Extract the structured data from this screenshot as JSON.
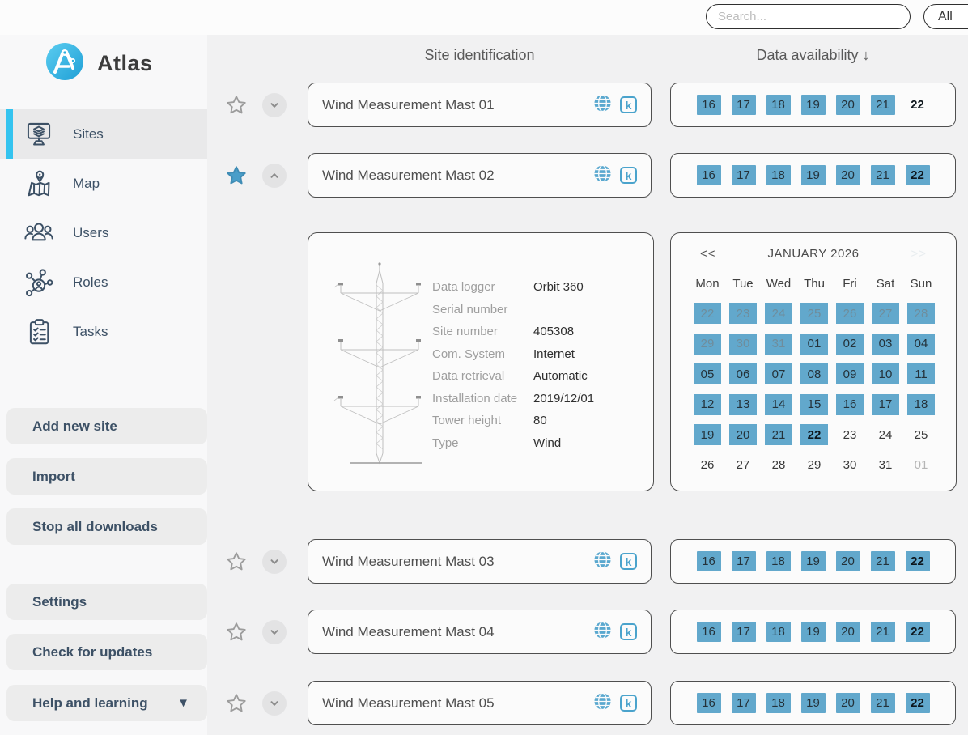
{
  "topbar": {
    "search": {
      "placeholder": "Search..."
    },
    "filter": {
      "value": "All"
    }
  },
  "brand": {
    "name": "Atlas"
  },
  "sidebar": {
    "nav_items": [
      {
        "id": "sites",
        "label": "Sites",
        "active": true
      },
      {
        "id": "map",
        "label": "Map",
        "active": false
      },
      {
        "id": "users",
        "label": "Users",
        "active": false
      },
      {
        "id": "roles",
        "label": "Roles",
        "active": false
      },
      {
        "id": "tasks",
        "label": "Tasks",
        "active": false
      }
    ],
    "action_buttons": [
      {
        "id": "add-new-site",
        "label": "Add new site"
      },
      {
        "id": "import",
        "label": "Import"
      },
      {
        "id": "stop-all-downloads",
        "label": "Stop all downloads"
      }
    ],
    "footer_buttons": [
      {
        "id": "settings",
        "label": "Settings"
      },
      {
        "id": "check-for-updates",
        "label": "Check for updates"
      },
      {
        "id": "help-and-learning",
        "label": "Help and learning",
        "dropdown_glyph": "▼"
      }
    ]
  },
  "headers": {
    "site_identification": "Site identification",
    "data_availability": "Data availability",
    "sort_arrow": "↓"
  },
  "icons": {
    "k_badge_letter": "k"
  },
  "sites": [
    {
      "name": "Wind Measurement Mast 01",
      "favorite": false,
      "expanded": false,
      "days": [
        {
          "d": "16",
          "fill": true
        },
        {
          "d": "17",
          "fill": true
        },
        {
          "d": "18",
          "fill": true
        },
        {
          "d": "19",
          "fill": true
        },
        {
          "d": "20",
          "fill": true
        },
        {
          "d": "21",
          "fill": true
        },
        {
          "d": "22",
          "fill": false,
          "bold": true
        }
      ]
    },
    {
      "name": "Wind Measurement Mast 02",
      "favorite": true,
      "expanded": true,
      "days": [
        {
          "d": "16",
          "fill": true
        },
        {
          "d": "17",
          "fill": true
        },
        {
          "d": "18",
          "fill": true
        },
        {
          "d": "19",
          "fill": true
        },
        {
          "d": "20",
          "fill": true
        },
        {
          "d": "21",
          "fill": true
        },
        {
          "d": "22",
          "fill": true,
          "bold": true
        }
      ]
    },
    {
      "name": "Wind Measurement Mast 03",
      "favorite": false,
      "expanded": false,
      "days": [
        {
          "d": "16",
          "fill": true
        },
        {
          "d": "17",
          "fill": true
        },
        {
          "d": "18",
          "fill": true
        },
        {
          "d": "19",
          "fill": true
        },
        {
          "d": "20",
          "fill": true
        },
        {
          "d": "21",
          "fill": true
        },
        {
          "d": "22",
          "fill": true,
          "bold": true
        }
      ]
    },
    {
      "name": "Wind Measurement Mast 04",
      "favorite": false,
      "expanded": false,
      "days": [
        {
          "d": "16",
          "fill": true
        },
        {
          "d": "17",
          "fill": true
        },
        {
          "d": "18",
          "fill": true
        },
        {
          "d": "19",
          "fill": true
        },
        {
          "d": "20",
          "fill": true
        },
        {
          "d": "21",
          "fill": true
        },
        {
          "d": "22",
          "fill": true,
          "bold": true
        }
      ]
    },
    {
      "name": "Wind Measurement Mast 05",
      "favorite": false,
      "expanded": false,
      "days": [
        {
          "d": "16",
          "fill": true
        },
        {
          "d": "17",
          "fill": true
        },
        {
          "d": "18",
          "fill": true
        },
        {
          "d": "19",
          "fill": true
        },
        {
          "d": "20",
          "fill": true
        },
        {
          "d": "21",
          "fill": true
        },
        {
          "d": "22",
          "fill": true,
          "bold": true
        }
      ]
    }
  ],
  "site_details": {
    "fields": [
      {
        "label": "Data logger",
        "value": "Orbit 360"
      },
      {
        "label": "Serial number",
        "value": ""
      },
      {
        "label": "Site number",
        "value": "405308"
      },
      {
        "label": "Com. System",
        "value": "Internet"
      },
      {
        "label": "Data retrieval",
        "value": "Automatic"
      },
      {
        "label": "Installation date",
        "value": "2019/12/01"
      },
      {
        "label": "Tower height",
        "value": "80"
      },
      {
        "label": "Type",
        "value": "Wind"
      }
    ]
  },
  "calendar": {
    "prev_label": "<<",
    "next_label": ">>",
    "title": "JANUARY 2026",
    "day_headers": [
      "Mon",
      "Tue",
      "Wed",
      "Thu",
      "Fri",
      "Sat",
      "Sun"
    ],
    "weeks": [
      [
        {
          "d": "22",
          "fill": true,
          "muted": true
        },
        {
          "d": "23",
          "fill": true,
          "muted": true
        },
        {
          "d": "24",
          "fill": true,
          "muted": true
        },
        {
          "d": "25",
          "fill": true,
          "muted": true
        },
        {
          "d": "26",
          "fill": true,
          "muted": true
        },
        {
          "d": "27",
          "fill": true,
          "muted": true
        },
        {
          "d": "28",
          "fill": true,
          "muted": true
        }
      ],
      [
        {
          "d": "29",
          "fill": true,
          "muted": true
        },
        {
          "d": "30",
          "fill": true,
          "muted": true
        },
        {
          "d": "31",
          "fill": true,
          "muted": true
        },
        {
          "d": "01",
          "fill": true
        },
        {
          "d": "02",
          "fill": true
        },
        {
          "d": "03",
          "fill": true
        },
        {
          "d": "04",
          "fill": true
        }
      ],
      [
        {
          "d": "05",
          "fill": true
        },
        {
          "d": "06",
          "fill": true
        },
        {
          "d": "07",
          "fill": true
        },
        {
          "d": "08",
          "fill": true
        },
        {
          "d": "09",
          "fill": true
        },
        {
          "d": "10",
          "fill": true
        },
        {
          "d": "11",
          "fill": true
        }
      ],
      [
        {
          "d": "12",
          "fill": true
        },
        {
          "d": "13",
          "fill": true
        },
        {
          "d": "14",
          "fill": true
        },
        {
          "d": "15",
          "fill": true
        },
        {
          "d": "16",
          "fill": true
        },
        {
          "d": "17",
          "fill": true
        },
        {
          "d": "18",
          "fill": true
        }
      ],
      [
        {
          "d": "19",
          "fill": true
        },
        {
          "d": "20",
          "fill": true
        },
        {
          "d": "21",
          "fill": true
        },
        {
          "d": "22",
          "fill": true,
          "bold": true
        },
        {
          "d": "23"
        },
        {
          "d": "24"
        },
        {
          "d": "25"
        }
      ],
      [
        {
          "d": "26"
        },
        {
          "d": "27"
        },
        {
          "d": "28"
        },
        {
          "d": "29"
        },
        {
          "d": "30"
        },
        {
          "d": "31"
        },
        {
          "d": "01",
          "muted": true
        }
      ]
    ]
  },
  "colors": {
    "accent_cyan": "#34c3ef",
    "availability_blue": "#62a8cc",
    "favorite_star_blue": "#4a9ec9",
    "sidebar_text": "#3d5166",
    "card_border": "#4f4f4f"
  }
}
